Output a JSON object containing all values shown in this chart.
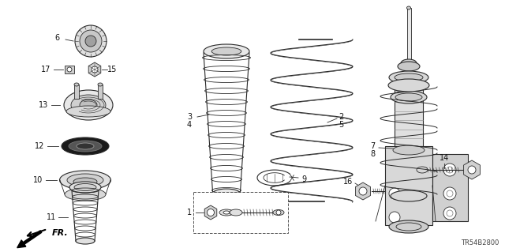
{
  "background_color": "#ffffff",
  "diagram_code": "TR54B2800",
  "line_color": "#2a2a2a",
  "label_color": "#111111",
  "label_fs": 7.0,
  "figsize": [
    6.4,
    3.19
  ],
  "dpi": 100
}
